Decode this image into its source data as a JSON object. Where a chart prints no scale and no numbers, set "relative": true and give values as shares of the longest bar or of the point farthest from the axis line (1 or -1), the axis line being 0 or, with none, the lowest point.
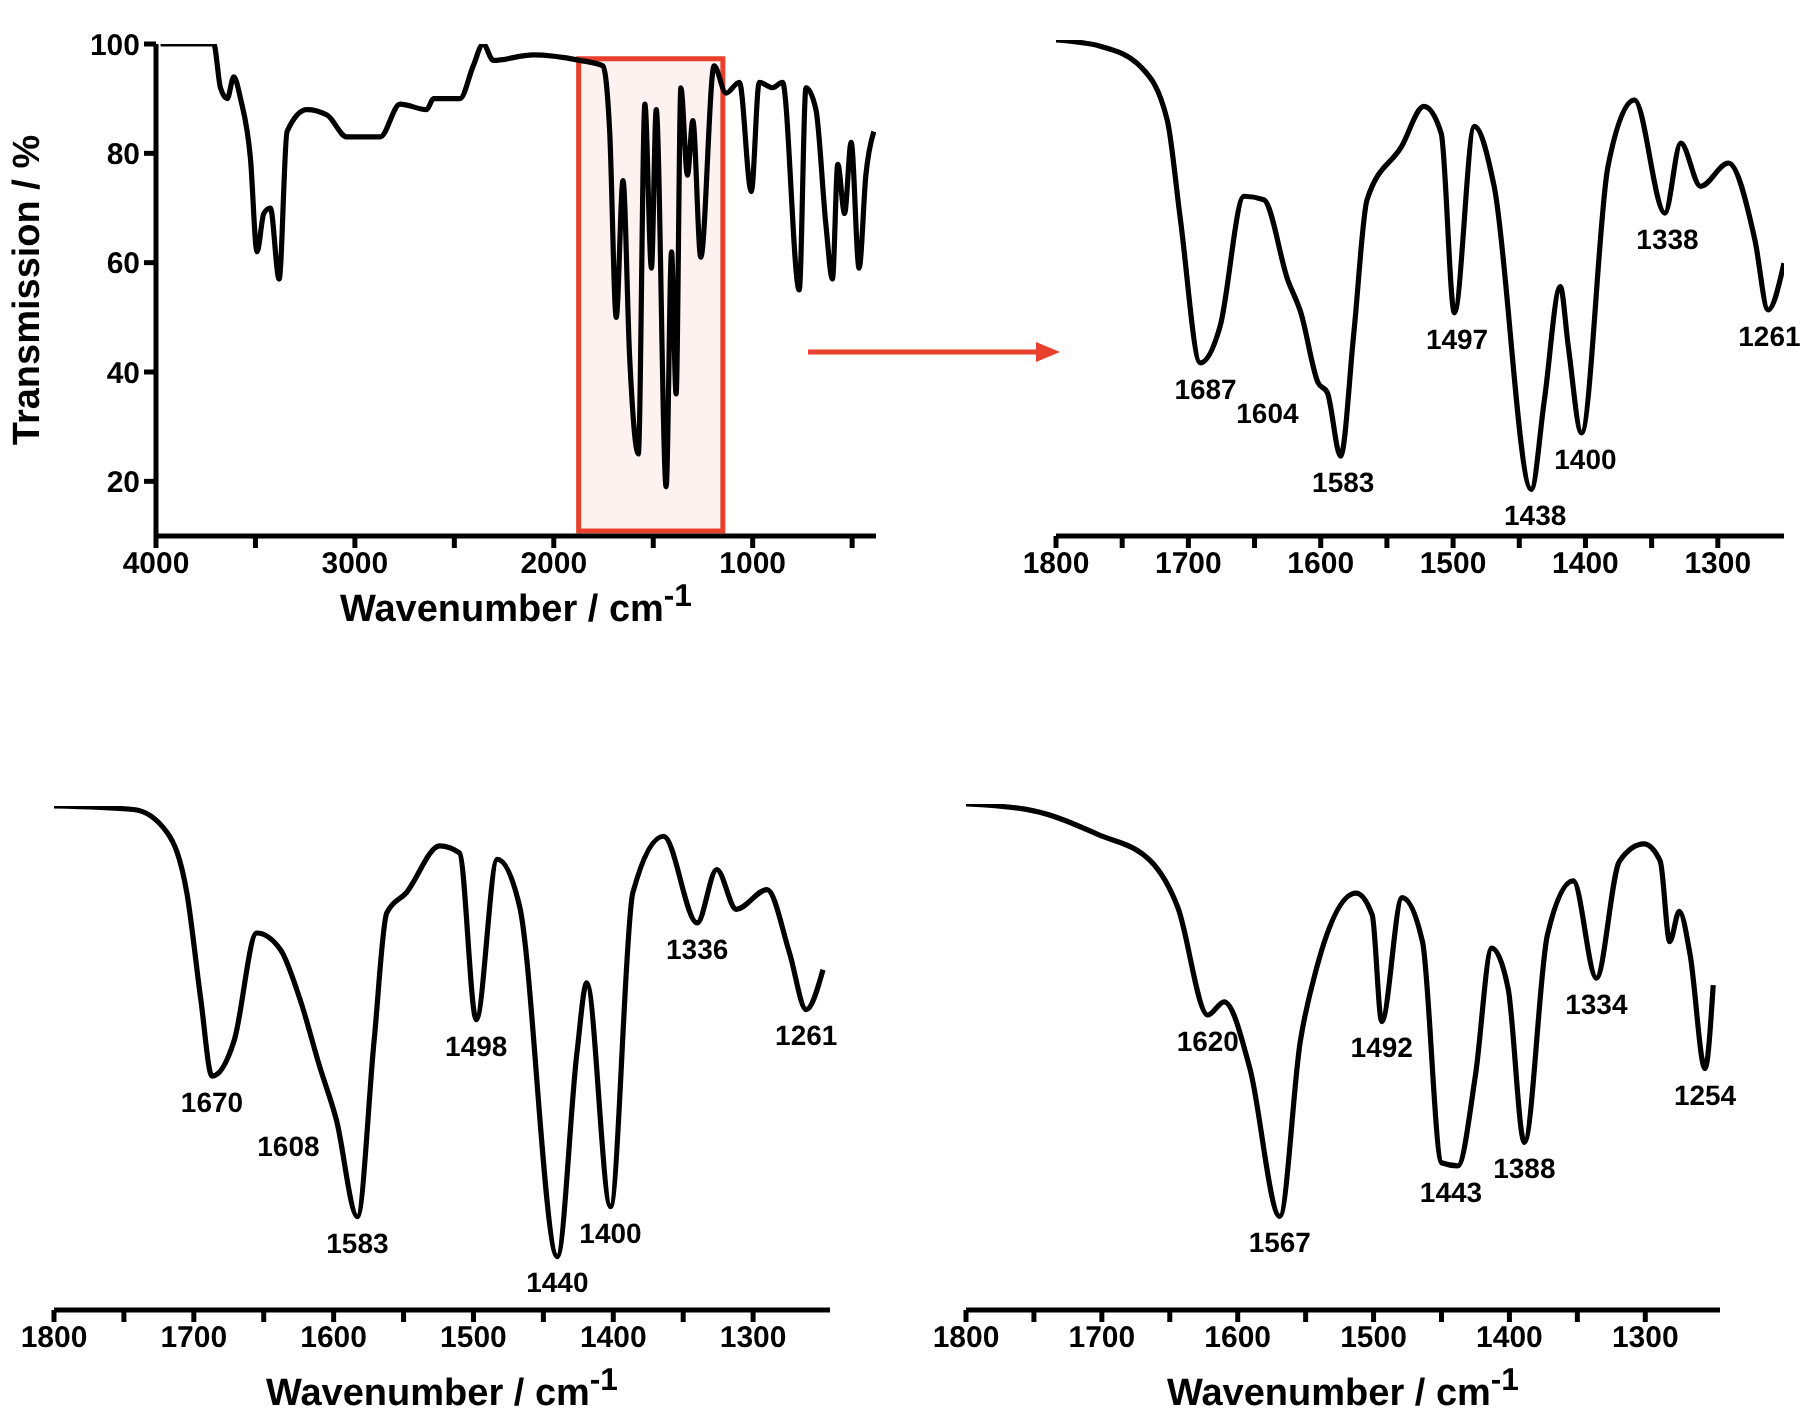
{
  "chart_data": [
    {
      "type": "line",
      "xlabel": "Wavenumber / cm$^{-1}$",
      "ylabel": "Transmission / %",
      "color": "#000000",
      "x": [
        3977,
        3710,
        3676,
        3642,
        3609,
        3575,
        3525,
        3492,
        3458,
        3425,
        3381,
        3341,
        3241,
        3140,
        3040,
        2873,
        2773,
        2639,
        2605,
        2472,
        2405,
        2355,
        2304,
        2104,
        1870,
        1753,
        1719,
        1686,
        1652,
        1619,
        1575,
        1542,
        1509,
        1485,
        1435,
        1408,
        1385,
        1361,
        1328,
        1301,
        1261,
        1194,
        1134,
        1067,
        1007,
        967,
        900,
        850,
        766,
        732,
        682,
        632,
        599,
        572,
        538,
        505,
        465,
        431,
        391
      ],
      "values": [
        100,
        100,
        92,
        90,
        94,
        90,
        79,
        62,
        69,
        70,
        57,
        84,
        88,
        87,
        83,
        83,
        89,
        88,
        90,
        90,
        96,
        100,
        97,
        98,
        97,
        96,
        84,
        50,
        75,
        43,
        25,
        89,
        59,
        88,
        19,
        62,
        36,
        92,
        76,
        86,
        61,
        96,
        91,
        93,
        73,
        93,
        92,
        93,
        55,
        92,
        88,
        67,
        57,
        78,
        69,
        82,
        59,
        76,
        84
      ],
      "xlim": [
        4000,
        380
      ],
      "xticks": [
        4000,
        {
          "value": 3500,
          "label": null
        },
        3000,
        {
          "value": 2500,
          "label": null
        },
        2000,
        {
          "value": 1500,
          "label": null
        },
        1000,
        {
          "value": 500,
          "label": null
        }
      ],
      "ylim": [
        10,
        100
      ],
      "yticks": [
        20,
        40,
        60,
        80,
        100
      ],
      "bands": [
        {
          "axis": "x",
          "from": 1875,
          "to": 1150,
          "color": "#e8402c"
        }
      ]
    },
    {
      "type": "line",
      "relative": true,
      "color": "#000000",
      "x": [
        1800,
        1766,
        1736,
        1716,
        1706,
        1691,
        1676,
        1658,
        1643,
        1625,
        1615,
        1602,
        1595,
        1585,
        1575,
        1565,
        1539,
        1522,
        1509,
        1499,
        1484,
        1469,
        1441,
        1431,
        1419,
        1413,
        1403,
        1383,
        1363,
        1340,
        1328,
        1313,
        1292,
        1272,
        1262,
        1250
      ],
      "values": [
        1.0,
        0.987,
        0.946,
        0.839,
        0.638,
        0.349,
        0.423,
        0.685,
        0.678,
        0.517,
        0.45,
        0.309,
        0.289,
        0.161,
        0.409,
        0.678,
        0.785,
        0.866,
        0.812,
        0.45,
        0.826,
        0.705,
        0.094,
        0.275,
        0.503,
        0.383,
        0.208,
        0.745,
        0.879,
        0.651,
        0.792,
        0.705,
        0.752,
        0.597,
        0.456,
        0.55
      ],
      "xlim": [
        1800,
        1250
      ],
      "xticks": [
        1800,
        {
          "value": 1750,
          "label": null
        },
        1700,
        {
          "value": 1650,
          "label": null
        },
        1600,
        {
          "value": 1550,
          "label": null
        },
        1500,
        {
          "value": 1450,
          "label": null
        },
        1400,
        {
          "value": 1350,
          "label": null
        },
        1300
      ],
      "annotations": [
        {
          "text": "1687",
          "x": 1687,
          "y": 0.349
        },
        {
          "text": "1604",
          "x": 1604,
          "y": 0.3
        },
        {
          "text": "1583",
          "x": 1583,
          "y": 0.161
        },
        {
          "text": "1497",
          "x": 1497,
          "y": 0.45
        },
        {
          "text": "1438",
          "x": 1438,
          "y": 0.094
        },
        {
          "text": "1400",
          "x": 1400,
          "y": 0.208
        },
        {
          "text": "1338",
          "x": 1338,
          "y": 0.651
        },
        {
          "text": "1261",
          "x": 1261,
          "y": 0.456
        }
      ]
    },
    {
      "type": "line",
      "relative": true,
      "xlabel": "Wavenumber / cm$^{-1}$",
      "color": "#000000",
      "x": [
        1800,
        1743,
        1719,
        1705,
        1695,
        1687,
        1671,
        1655,
        1638,
        1624,
        1610,
        1598,
        1583,
        1571,
        1562,
        1548,
        1524,
        1510,
        1498,
        1483,
        1467,
        1440,
        1426,
        1419,
        1402,
        1386,
        1364,
        1340,
        1326,
        1312,
        1290,
        1274,
        1262,
        1250
      ],
      "values": [
        1.0,
        0.993,
        0.947,
        0.828,
        0.616,
        0.464,
        0.536,
        0.748,
        0.715,
        0.616,
        0.483,
        0.377,
        0.185,
        0.536,
        0.788,
        0.828,
        0.921,
        0.907,
        0.576,
        0.894,
        0.801,
        0.106,
        0.51,
        0.649,
        0.205,
        0.828,
        0.94,
        0.768,
        0.874,
        0.795,
        0.834,
        0.709,
        0.596,
        0.675
      ],
      "xlim": [
        1800,
        1245
      ],
      "xticks": [
        1800,
        {
          "value": 1750,
          "label": null
        },
        1700,
        {
          "value": 1650,
          "label": null
        },
        1600,
        {
          "value": 1550,
          "label": null
        },
        1500,
        {
          "value": 1450,
          "label": null
        },
        1400,
        {
          "value": 1350,
          "label": null
        },
        1300
      ],
      "annotations": [
        {
          "text": "1670",
          "x": 1687,
          "y": 0.464
        },
        {
          "text": "1608",
          "x": 1598,
          "y": 0.377
        },
        {
          "text": "1583",
          "x": 1583,
          "y": 0.185
        },
        {
          "text": "1498",
          "x": 1498,
          "y": 0.576
        },
        {
          "text": "1440",
          "x": 1440,
          "y": 0.106
        },
        {
          "text": "1400",
          "x": 1402,
          "y": 0.205
        },
        {
          "text": "1336",
          "x": 1340,
          "y": 0.768
        },
        {
          "text": "1261",
          "x": 1262,
          "y": 0.596
        }
      ]
    },
    {
      "type": "line",
      "relative": true,
      "xlabel": "Wavenumber / cm$^{-1}$",
      "color": "#000000",
      "x": [
        1800,
        1751,
        1703,
        1664,
        1644,
        1622,
        1610,
        1591,
        1569,
        1554,
        1542,
        1513,
        1501,
        1494,
        1479,
        1464,
        1450,
        1438,
        1425,
        1413,
        1401,
        1389,
        1372,
        1353,
        1336,
        1319,
        1301,
        1289,
        1282,
        1275,
        1267,
        1256,
        1250
      ],
      "values": [
        1.0,
        0.987,
        0.94,
        0.887,
        0.795,
        0.583,
        0.609,
        0.477,
        0.185,
        0.53,
        0.675,
        0.824,
        0.781,
        0.57,
        0.815,
        0.728,
        0.291,
        0.285,
        0.464,
        0.715,
        0.636,
        0.331,
        0.742,
        0.848,
        0.656,
        0.887,
        0.921,
        0.887,
        0.728,
        0.788,
        0.702,
        0.477,
        0.642
      ],
      "xlim": [
        1800,
        1245
      ],
      "xticks": [
        1800,
        {
          "value": 1750,
          "label": null
        },
        1700,
        {
          "value": 1650,
          "label": null
        },
        1600,
        {
          "value": 1550,
          "label": null
        },
        1500,
        {
          "value": 1450,
          "label": null
        },
        1400,
        {
          "value": 1350,
          "label": null
        },
        1300
      ],
      "annotations": [
        {
          "text": "1620",
          "x": 1622,
          "y": 0.583
        },
        {
          "text": "1567",
          "x": 1569,
          "y": 0.185
        },
        {
          "text": "1492",
          "x": 1494,
          "y": 0.57
        },
        {
          "text": "1443",
          "x": 1443,
          "y": 0.285
        },
        {
          "text": "1388",
          "x": 1389,
          "y": 0.331
        },
        {
          "text": "1334",
          "x": 1336,
          "y": 0.656
        },
        {
          "text": "1254",
          "x": 1256,
          "y": 0.477
        }
      ]
    }
  ]
}
